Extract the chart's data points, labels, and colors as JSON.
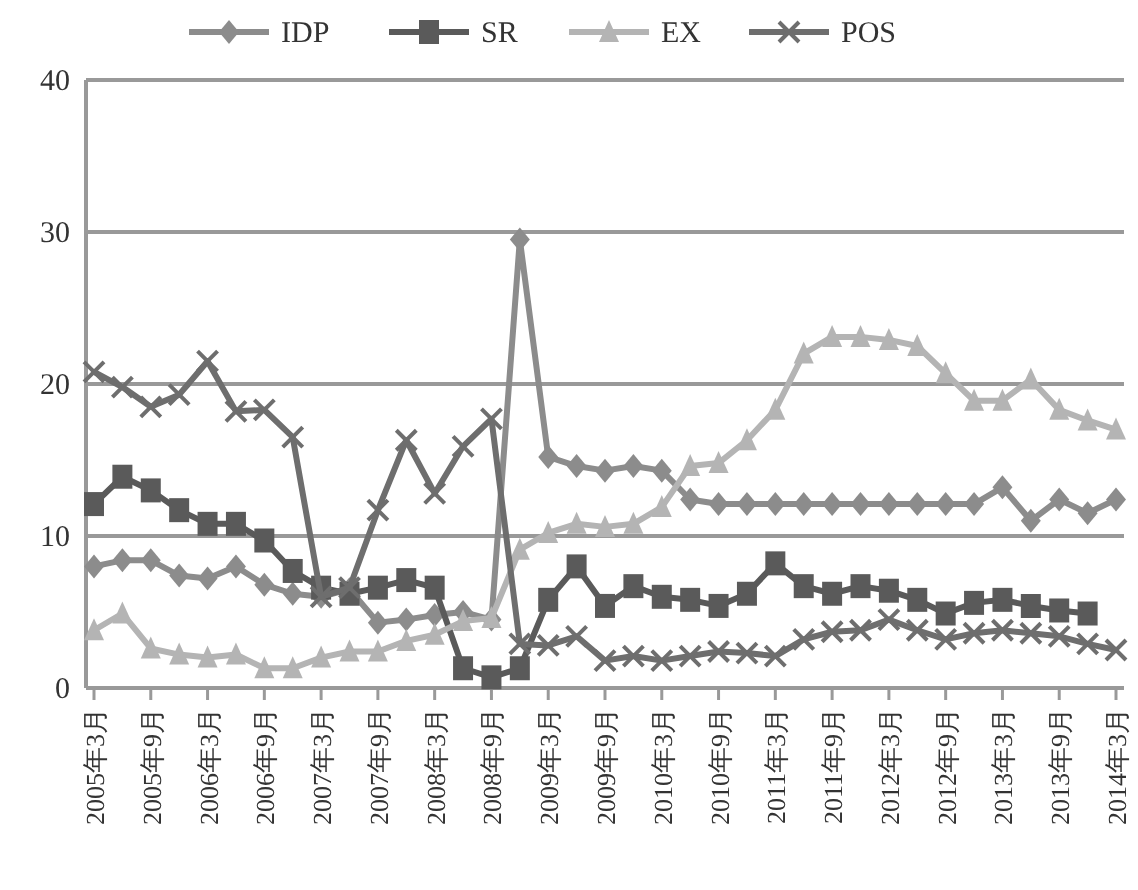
{
  "chart_data": {
    "type": "line",
    "categories": [
      "2005年3月",
      null,
      "2005年9月",
      null,
      "2006年3月",
      null,
      "2006年9月",
      null,
      "2007年3月",
      null,
      "2007年9月",
      null,
      "2008年3月",
      null,
      "2008年9月",
      null,
      "2009年3月",
      null,
      "2009年9月",
      null,
      "2010年3月",
      null,
      "2010年9月",
      null,
      "2011年3月",
      null,
      "2011年9月",
      null,
      "2012年3月",
      null,
      "2012年9月",
      null,
      "2013年3月",
      null,
      "2013年9月",
      null,
      "2014年3月"
    ],
    "series": [
      {
        "name": "IDP",
        "color": "#8c8c8c",
        "marker": "diamond",
        "values": [
          8,
          8.4,
          8.4,
          7.4,
          7.2,
          8,
          6.8,
          6.2,
          6,
          6.5,
          4.3,
          4.5,
          4.8,
          5,
          4.5,
          29.5,
          15.2,
          14.6,
          14.3,
          14.6,
          14.3,
          12.4,
          12.1,
          12.1,
          12.1,
          12.1,
          12.1,
          12.1,
          12.1,
          12.1,
          12.1,
          12.1,
          13.2,
          11,
          12.4,
          11.5,
          12.4
        ]
      },
      {
        "name": "SR",
        "color": "#5a5a5a",
        "marker": "square",
        "values": [
          12.1,
          13.9,
          13,
          11.7,
          10.8,
          10.8,
          9.7,
          7.7,
          6.6,
          6.2,
          6.6,
          7.1,
          6.6,
          1.3,
          0.7,
          1.3,
          5.8,
          8,
          5.4,
          6.7,
          6,
          5.8,
          5.4,
          6.2,
          8.2,
          6.7,
          6.2,
          6.7,
          6.4,
          5.8,
          4.9,
          5.6,
          5.8,
          5.4,
          5.1,
          4.9,
          null
        ]
      },
      {
        "name": "EX",
        "color": "#b4b4b4",
        "marker": "triangle",
        "values": [
          3.8,
          4.9,
          2.6,
          2.2,
          2,
          2.2,
          1.3,
          1.3,
          2,
          2.4,
          2.4,
          3.1,
          3.5,
          4.4,
          4.6,
          9.1,
          10.2,
          10.8,
          10.6,
          10.8,
          11.9,
          14.6,
          14.8,
          16.3,
          18.3,
          22,
          23.1,
          23.1,
          22.9,
          22.5,
          20.7,
          18.9,
          18.9,
          20.3,
          18.3,
          17.6,
          17
        ]
      },
      {
        "name": "POS",
        "color": "#6e6e6e",
        "marker": "cross",
        "values": [
          20.8,
          19.8,
          18.5,
          19.3,
          21.5,
          18.2,
          18.3,
          16.5,
          6,
          6.6,
          11.7,
          16.3,
          12.8,
          15.9,
          17.7,
          2.9,
          2.8,
          3.4,
          1.8,
          2.1,
          1.8,
          2.1,
          2.4,
          2.3,
          2.1,
          3.2,
          3.7,
          3.8,
          4.5,
          3.8,
          3.2,
          3.6,
          3.8,
          3.6,
          3.4,
          2.9,
          2.5
        ]
      }
    ],
    "ylim": [
      0,
      40
    ],
    "yticks": [
      0,
      10,
      20,
      30,
      40
    ],
    "grid": "y",
    "legend": "top"
  }
}
